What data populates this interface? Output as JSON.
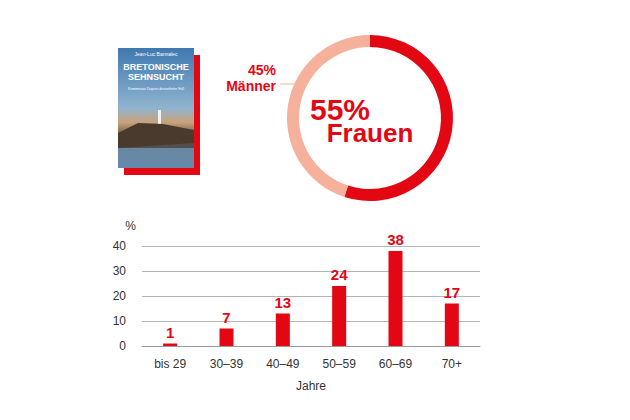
{
  "chart_data": [
    {
      "type": "pie",
      "categories": [
        "Frauen",
        "Männer"
      ],
      "values": [
        55,
        45
      ],
      "value_labels": [
        "55%",
        "45%"
      ],
      "colors": [
        "#e30613",
        "#f5b19c"
      ],
      "data_labels": true
    },
    {
      "type": "bar",
      "x_label": "Jahre",
      "y_label": "%",
      "categories": [
        "bis 29",
        "30–39",
        "40–49",
        "50–59",
        "60–69",
        "70+"
      ],
      "values": [
        1,
        7,
        13,
        24,
        38,
        17
      ],
      "color": "#e30613",
      "ylim": [
        0,
        40
      ],
      "yticks": [
        0,
        10,
        20,
        30,
        40
      ],
      "grid": true,
      "data_labels": true
    }
  ],
  "book_cover": {
    "author": "Jean-Luc Bannalec",
    "title": "BRETONISCHE SEHNSUCHT",
    "subtitle": "Kommissar Dupins dreizehnter Fall"
  }
}
